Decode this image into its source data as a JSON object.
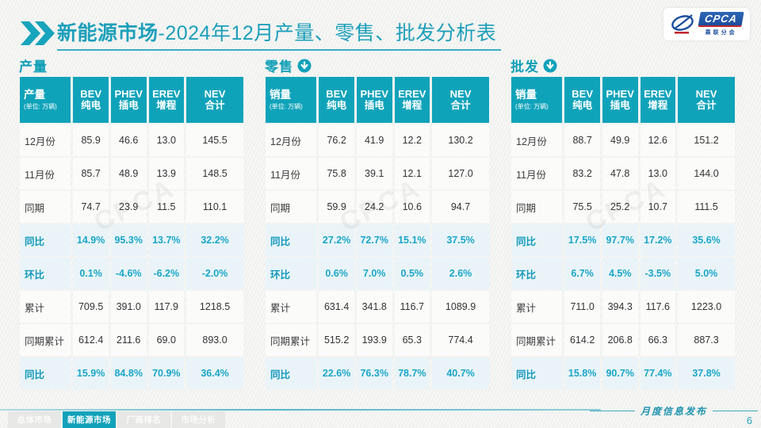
{
  "header": {
    "title_highlight": "新能源市场",
    "title_rest": "-2024年12月产量、零售、批发分析表",
    "logo": {
      "acronym": "CPCA",
      "subtitle": "乘联分会"
    }
  },
  "colors": {
    "accent_teal": "#0fa3ba",
    "title_teal": "#1c9fba",
    "highlight_row_bg": "#eaf4f8",
    "highlight_text": "#1aa6c9",
    "logo_blue": "#1b4e9b",
    "logo_red": "#c0272d"
  },
  "watermark_text": "CPCA",
  "chart_data": [
    {
      "type": "table",
      "section_title": "产量",
      "trend_icon": null,
      "corner_label": "产量",
      "unit_label": "(单位: 万辆)",
      "columns": [
        {
          "line1": "BEV",
          "line2": "纯电"
        },
        {
          "line1": "PHEV",
          "line2": "插电"
        },
        {
          "line1": "EREV",
          "line2": "增程"
        },
        {
          "line1": "NEV",
          "line2": "合计"
        }
      ],
      "rows": [
        {
          "label": "12月份",
          "values": [
            "85.9",
            "46.6",
            "13.0",
            "145.5"
          ],
          "highlight": false
        },
        {
          "label": "11月份",
          "values": [
            "85.7",
            "48.9",
            "13.9",
            "148.5"
          ],
          "highlight": false
        },
        {
          "label": "同期",
          "values": [
            "74.7",
            "23.9",
            "11.5",
            "110.1"
          ],
          "highlight": false
        },
        {
          "label": "同比",
          "values": [
            "14.9%",
            "95.3%",
            "13.7%",
            "32.2%"
          ],
          "highlight": true
        },
        {
          "label": "环比",
          "values": [
            "0.1%",
            "-4.6%",
            "-6.2%",
            "-2.0%"
          ],
          "highlight": true
        },
        {
          "label": "累计",
          "values": [
            "709.5",
            "391.0",
            "117.9",
            "1218.5"
          ],
          "highlight": false
        },
        {
          "label": "同期累计",
          "values": [
            "612.4",
            "211.6",
            "69.0",
            "893.0"
          ],
          "highlight": false
        },
        {
          "label": "同比",
          "values": [
            "15.9%",
            "84.8%",
            "70.9%",
            "36.4%"
          ],
          "highlight": true
        }
      ]
    },
    {
      "type": "table",
      "section_title": "零售",
      "trend_icon": "circle-down-arrow",
      "corner_label": "销量",
      "unit_label": "(单位: 万辆)",
      "columns": [
        {
          "line1": "BEV",
          "line2": "纯电"
        },
        {
          "line1": "PHEV",
          "line2": "插电"
        },
        {
          "line1": "EREV",
          "line2": "增程"
        },
        {
          "line1": "NEV",
          "line2": "合计"
        }
      ],
      "rows": [
        {
          "label": "12月份",
          "values": [
            "76.2",
            "41.9",
            "12.2",
            "130.2"
          ],
          "highlight": false
        },
        {
          "label": "11月份",
          "values": [
            "75.8",
            "39.1",
            "12.1",
            "127.0"
          ],
          "highlight": false
        },
        {
          "label": "同期",
          "values": [
            "59.9",
            "24.2",
            "10.6",
            "94.7"
          ],
          "highlight": false
        },
        {
          "label": "同比",
          "values": [
            "27.2%",
            "72.7%",
            "15.1%",
            "37.5%"
          ],
          "highlight": true
        },
        {
          "label": "环比",
          "values": [
            "0.6%",
            "7.0%",
            "0.5%",
            "2.6%"
          ],
          "highlight": true
        },
        {
          "label": "累计",
          "values": [
            "631.4",
            "341.8",
            "116.7",
            "1089.9"
          ],
          "highlight": false
        },
        {
          "label": "同期累计",
          "values": [
            "515.2",
            "193.9",
            "65.3",
            "774.4"
          ],
          "highlight": false
        },
        {
          "label": "同比",
          "values": [
            "22.6%",
            "76.3%",
            "78.7%",
            "40.7%"
          ],
          "highlight": true
        }
      ]
    },
    {
      "type": "table",
      "section_title": "批发",
      "trend_icon": "circle-down-arrow",
      "corner_label": "销量",
      "unit_label": "(单位: 万辆)",
      "columns": [
        {
          "line1": "BEV",
          "line2": "纯电"
        },
        {
          "line1": "PHEV",
          "line2": "插电"
        },
        {
          "line1": "EREV",
          "line2": "增程"
        },
        {
          "line1": "NEV",
          "line2": "合计"
        }
      ],
      "rows": [
        {
          "label": "12月份",
          "values": [
            "88.7",
            "49.9",
            "12.6",
            "151.2"
          ],
          "highlight": false
        },
        {
          "label": "11月份",
          "values": [
            "83.2",
            "47.8",
            "13.0",
            "144.0"
          ],
          "highlight": false
        },
        {
          "label": "同期",
          "values": [
            "75.5",
            "25.2",
            "10.7",
            "111.5"
          ],
          "highlight": false
        },
        {
          "label": "同比",
          "values": [
            "17.5%",
            "97.7%",
            "17.2%",
            "35.6%"
          ],
          "highlight": true
        },
        {
          "label": "环比",
          "values": [
            "6.7%",
            "4.5%",
            "-3.5%",
            "5.0%"
          ],
          "highlight": true
        },
        {
          "label": "累计",
          "values": [
            "711.0",
            "394.3",
            "117.6",
            "1223.0"
          ],
          "highlight": false
        },
        {
          "label": "同期累计",
          "values": [
            "614.2",
            "206.8",
            "66.3",
            "887.3"
          ],
          "highlight": false
        },
        {
          "label": "同比",
          "values": [
            "15.8%",
            "90.7%",
            "77.4%",
            "37.8%"
          ],
          "highlight": true
        }
      ]
    }
  ],
  "footer": {
    "tabs": [
      {
        "label": "总体市场",
        "active": false
      },
      {
        "label": "新能源市场",
        "active": true
      },
      {
        "label": "厂商排名",
        "active": false
      },
      {
        "label": "市场分析",
        "active": false
      }
    ],
    "caption": "月度信息发布",
    "page_number": "6"
  }
}
